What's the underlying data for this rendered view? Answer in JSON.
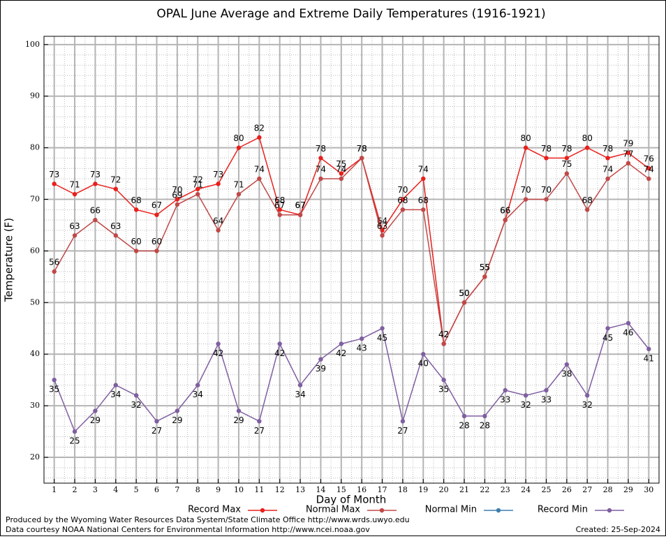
{
  "chart_data": {
    "type": "line",
    "title": "OPAL June Average and Extreme Daily Temperatures (1916-1921)",
    "x_label": "Day of Month",
    "y_label": "Temperature (F)",
    "x": [
      1,
      2,
      3,
      4,
      5,
      6,
      7,
      8,
      9,
      10,
      11,
      12,
      13,
      14,
      15,
      16,
      17,
      18,
      19,
      20,
      21,
      22,
      23,
      24,
      25,
      26,
      27,
      28,
      29,
      30
    ],
    "xlim": [
      0.5,
      30.5
    ],
    "xticks": [
      1,
      2,
      3,
      4,
      5,
      6,
      7,
      8,
      9,
      10,
      11,
      12,
      13,
      14,
      15,
      16,
      17,
      18,
      19,
      20,
      21,
      22,
      23,
      24,
      25,
      26,
      27,
      28,
      29,
      30
    ],
    "ylim": [
      15,
      101.6
    ],
    "yticks": [
      20,
      30,
      40,
      50,
      60,
      70,
      80,
      90,
      100
    ],
    "grid": true,
    "legend": "bottom",
    "series": [
      {
        "name": "Record Max",
        "color": "#e8201c",
        "label_side": "above",
        "values": [
          73,
          71,
          73,
          72,
          68,
          67,
          70,
          72,
          73,
          80,
          82,
          68,
          67,
          78,
          75,
          78,
          64,
          70,
          74,
          42,
          50,
          55,
          66,
          80,
          78,
          78,
          80,
          78,
          79,
          76
        ]
      },
      {
        "name": "Normal Max",
        "color": "#c04848",
        "label_side": "above",
        "values": [
          56,
          63,
          66,
          63,
          60,
          60,
          69,
          71,
          64,
          71,
          74,
          67,
          67,
          74,
          74,
          78,
          63,
          68,
          68,
          42,
          50,
          55,
          66,
          70,
          70,
          75,
          68,
          74,
          77,
          74
        ]
      },
      {
        "name": "Normal Min",
        "color": "#3d7fb0",
        "label_side": "below",
        "values": [
          null,
          null,
          null,
          null,
          null,
          null,
          null,
          null,
          null,
          null,
          null,
          null,
          null,
          null,
          null,
          null,
          null,
          null,
          null,
          null,
          null,
          null,
          null,
          null,
          null,
          null,
          null,
          null,
          null,
          null
        ]
      },
      {
        "name": "Record Min",
        "color": "#7f5fa0",
        "label_side": "below",
        "values": [
          35,
          25,
          29,
          34,
          32,
          27,
          29,
          34,
          42,
          29,
          27,
          42,
          34,
          39,
          42,
          43,
          45,
          27,
          40,
          35,
          28,
          28,
          33,
          32,
          33,
          38,
          32,
          45,
          46,
          41
        ]
      }
    ],
    "footer_left": [
      "Produced by the Wyoming Water Resources Data System/State Climate Office http://www.wrds.uwyo.edu",
      "Data courtesy NOAA National Centers for Environmental Information http://www.ncei.noaa.gov"
    ],
    "footer_right": "Created:  25-Sep-2024"
  }
}
